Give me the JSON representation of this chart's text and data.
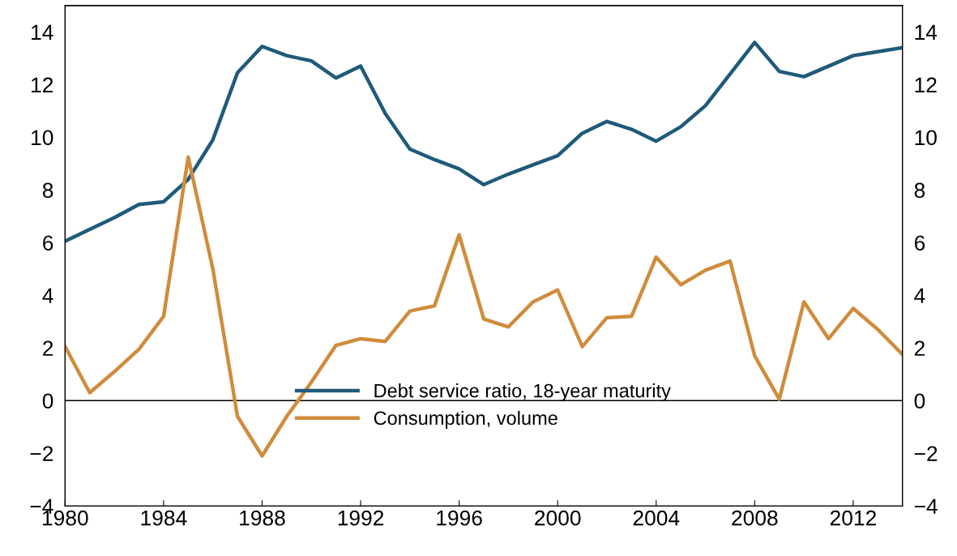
{
  "chart_data": {
    "type": "line",
    "x": [
      1980,
      1981,
      1982,
      1983,
      1984,
      1985,
      1986,
      1987,
      1988,
      1989,
      1990,
      1991,
      1992,
      1993,
      1994,
      1995,
      1996,
      1997,
      1998,
      1999,
      2000,
      2001,
      2002,
      2003,
      2004,
      2005,
      2006,
      2007,
      2008,
      2009,
      2010,
      2011,
      2012,
      2013,
      2014
    ],
    "series": [
      {
        "name": "Debt service ratio, 18-year maturity",
        "color": "#1f5a7a",
        "values": [
          6.05,
          6.5,
          6.95,
          7.45,
          7.55,
          8.4,
          9.9,
          12.45,
          13.45,
          13.1,
          12.9,
          12.25,
          12.7,
          10.9,
          9.55,
          9.15,
          8.8,
          8.2,
          8.6,
          8.95,
          9.3,
          10.15,
          10.6,
          10.3,
          9.85,
          10.4,
          11.2,
          12.4,
          13.6,
          12.5,
          12.3,
          12.7,
          13.1,
          13.25,
          13.4
        ]
      },
      {
        "name": "Consumption, volume",
        "color": "#d08c3c",
        "values": [
          2.05,
          0.3,
          1.1,
          1.95,
          3.2,
          9.25,
          5.0,
          -0.6,
          -2.1,
          -0.6,
          0.7,
          2.1,
          2.35,
          2.25,
          3.4,
          3.6,
          6.3,
          3.1,
          2.8,
          3.75,
          4.2,
          2.05,
          3.15,
          3.2,
          5.45,
          4.4,
          4.95,
          5.3,
          1.7,
          0.05,
          3.75,
          2.35,
          3.5,
          2.7,
          1.75
        ]
      }
    ],
    "xlim": [
      1980,
      2014
    ],
    "xticks": [
      1980,
      1984,
      1988,
      1992,
      1996,
      2000,
      2004,
      2008,
      2012
    ],
    "ylim": [
      -4,
      15
    ],
    "yticks": [
      -4,
      -2,
      0,
      2,
      4,
      6,
      8,
      10,
      12,
      14
    ],
    "y2lim": [
      -4,
      15
    ],
    "y2ticks": [
      -4,
      -2,
      0,
      2,
      4,
      6,
      8,
      10,
      12,
      14
    ],
    "ref_lines": [
      {
        "axis": "y",
        "value": 0,
        "color": "#000000"
      }
    ],
    "legend": "bottom",
    "grid": false,
    "marker": "none",
    "line_style": "solid"
  }
}
